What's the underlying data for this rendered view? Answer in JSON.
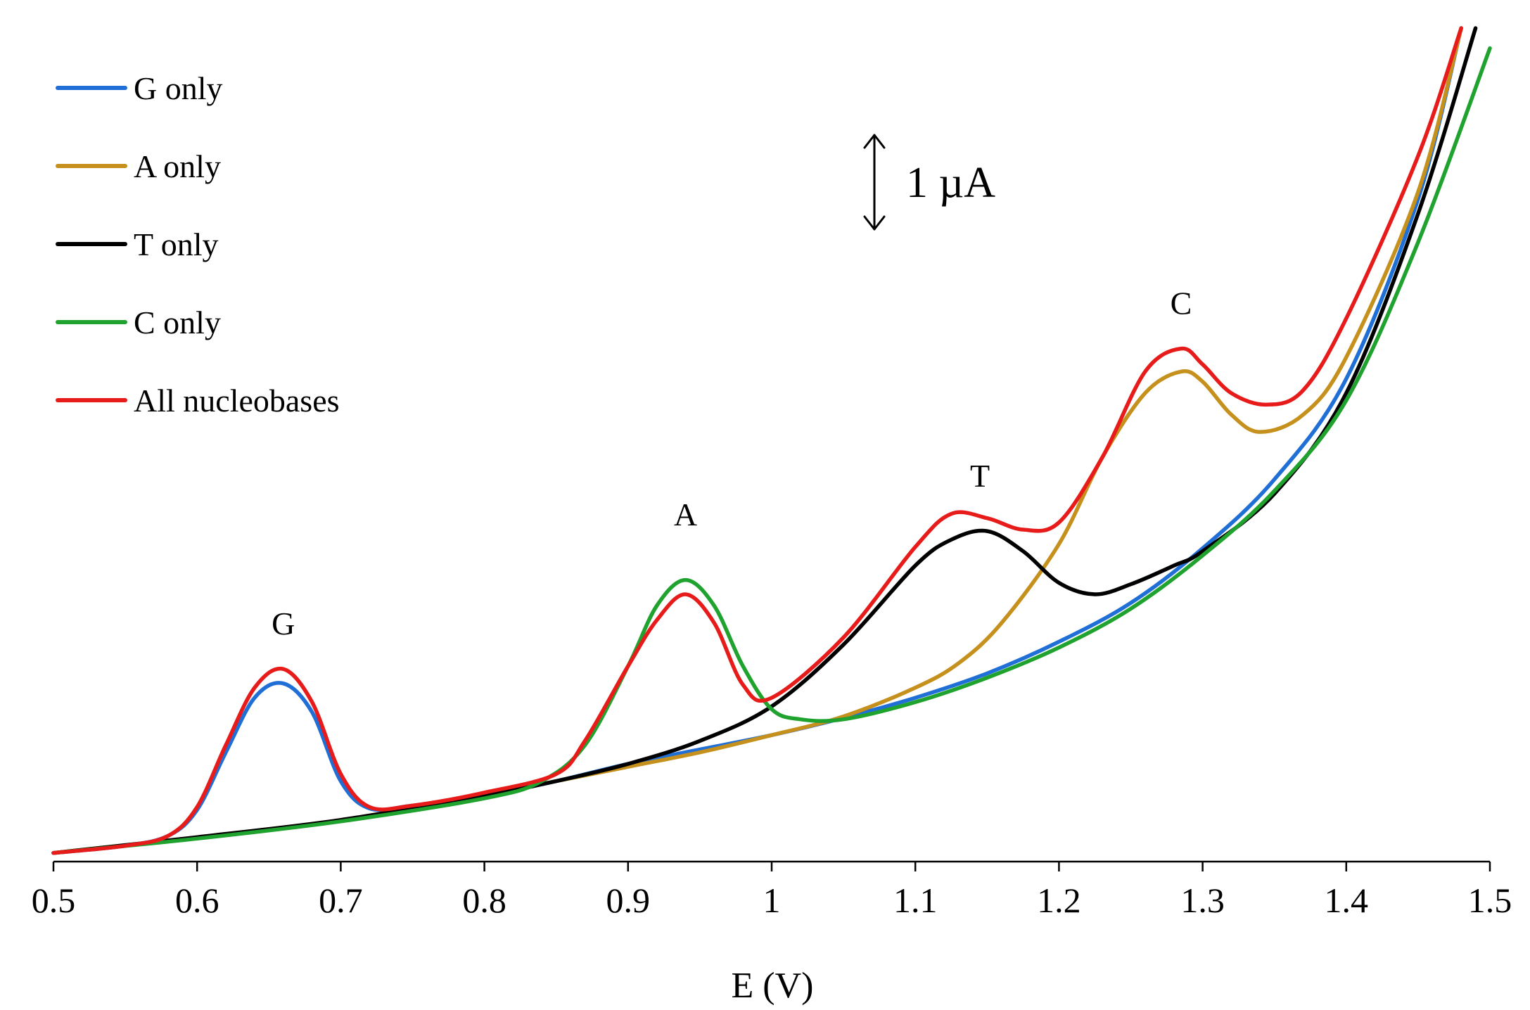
{
  "chart_data": {
    "type": "line",
    "title": "",
    "xlabel": "E (V)",
    "ylabel": "",
    "xlim": [
      0.5,
      1.5
    ],
    "ylim": [
      -0.06,
      5.74
    ],
    "x_ticks": [
      "0.5",
      "0.6",
      "0.7",
      "0.8",
      "0.9",
      "1",
      "1.1",
      "1.2",
      "1.3",
      "1.4",
      "1.5"
    ],
    "grid": false,
    "legend_position": "top-left",
    "scale_bar": {
      "label": "1 µA",
      "value": 1,
      "unit": "µA"
    },
    "peak_labels": [
      {
        "text": "G",
        "x": 0.66,
        "y": 1.52
      },
      {
        "text": "A",
        "x": 0.94,
        "y": 2.28
      },
      {
        "text": "T",
        "x": 1.145,
        "y": 2.55
      },
      {
        "text": "C",
        "x": 1.285,
        "y": 3.75
      }
    ],
    "series": [
      {
        "name": "G only",
        "color": "#1f6fd6",
        "x": [
          0.5,
          0.55,
          0.58,
          0.6,
          0.62,
          0.64,
          0.66,
          0.68,
          0.7,
          0.72,
          0.75,
          0.8,
          0.85,
          0.9,
          0.95,
          1.0,
          1.05,
          1.1,
          1.15,
          1.2,
          1.25,
          1.3,
          1.35,
          1.4,
          1.45,
          1.48
        ],
        "y": [
          0.0,
          0.05,
          0.12,
          0.3,
          0.7,
          1.08,
          1.18,
          0.98,
          0.5,
          0.31,
          0.33,
          0.4,
          0.5,
          0.62,
          0.72,
          0.82,
          0.94,
          1.08,
          1.25,
          1.47,
          1.74,
          2.12,
          2.6,
          3.3,
          4.55,
          5.74
        ]
      },
      {
        "name": "A only",
        "color": "#c6901c",
        "x": [
          0.5,
          0.6,
          0.7,
          0.8,
          0.85,
          0.9,
          0.95,
          1.0,
          1.05,
          1.1,
          1.13,
          1.16,
          1.2,
          1.23,
          1.26,
          1.285,
          1.3,
          1.32,
          1.34,
          1.37,
          1.4,
          1.45,
          1.48
        ],
        "y": [
          0.0,
          0.11,
          0.23,
          0.4,
          0.5,
          0.6,
          0.7,
          0.82,
          0.95,
          1.15,
          1.32,
          1.6,
          2.15,
          2.75,
          3.2,
          3.35,
          3.28,
          3.05,
          2.93,
          3.05,
          3.45,
          4.6,
          5.74
        ]
      },
      {
        "name": "T only",
        "color": "#000000",
        "x": [
          0.5,
          0.6,
          0.7,
          0.8,
          0.85,
          0.9,
          0.95,
          1.0,
          1.05,
          1.1,
          1.125,
          1.15,
          1.175,
          1.2,
          1.225,
          1.25,
          1.28,
          1.3,
          1.35,
          1.4,
          1.45,
          1.49
        ],
        "y": [
          0.0,
          0.11,
          0.23,
          0.4,
          0.5,
          0.62,
          0.78,
          1.02,
          1.45,
          2.0,
          2.18,
          2.24,
          2.1,
          1.88,
          1.8,
          1.87,
          2.0,
          2.1,
          2.5,
          3.2,
          4.45,
          5.74
        ]
      },
      {
        "name": "C only",
        "color": "#1fa22e",
        "x": [
          0.5,
          0.6,
          0.7,
          0.8,
          0.84,
          0.87,
          0.9,
          0.92,
          0.94,
          0.96,
          0.98,
          1.0,
          1.02,
          1.05,
          1.1,
          1.15,
          1.2,
          1.25,
          1.3,
          1.35,
          1.4,
          1.45,
          1.5
        ],
        "y": [
          0.0,
          0.1,
          0.22,
          0.38,
          0.5,
          0.75,
          1.3,
          1.72,
          1.9,
          1.72,
          1.3,
          1.0,
          0.93,
          0.93,
          1.05,
          1.22,
          1.43,
          1.7,
          2.07,
          2.52,
          3.15,
          4.25,
          5.6
        ]
      },
      {
        "name": "All nucleobases",
        "color": "#e81b1b",
        "x": [
          0.5,
          0.55,
          0.58,
          0.6,
          0.62,
          0.64,
          0.66,
          0.68,
          0.7,
          0.72,
          0.75,
          0.8,
          0.85,
          0.87,
          0.9,
          0.92,
          0.94,
          0.96,
          0.98,
          1.0,
          1.05,
          1.1,
          1.125,
          1.15,
          1.175,
          1.2,
          1.23,
          1.26,
          1.285,
          1.3,
          1.32,
          1.345,
          1.37,
          1.4,
          1.45,
          1.48
        ],
        "y": [
          0.0,
          0.05,
          0.12,
          0.32,
          0.75,
          1.15,
          1.28,
          1.05,
          0.55,
          0.32,
          0.33,
          0.42,
          0.55,
          0.78,
          1.3,
          1.62,
          1.8,
          1.6,
          1.17,
          1.08,
          1.5,
          2.13,
          2.36,
          2.33,
          2.25,
          2.3,
          2.75,
          3.35,
          3.51,
          3.4,
          3.2,
          3.12,
          3.22,
          3.72,
          4.85,
          5.74
        ]
      }
    ]
  }
}
